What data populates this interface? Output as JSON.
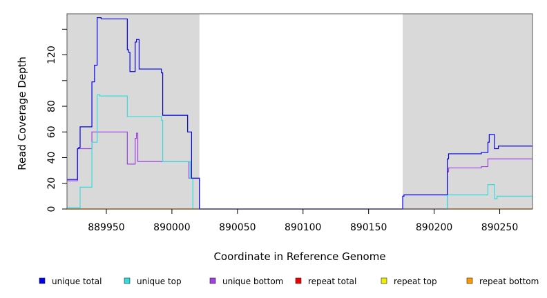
{
  "chart_data": {
    "type": "line",
    "title": "",
    "xlabel": "Coordinate in Reference Genome",
    "ylabel": "Read Coverage Depth",
    "xlim": [
      889920,
      890275
    ],
    "ylim": [
      0,
      152
    ],
    "x_ticks": [
      {
        "value": 889950,
        "label": "889950"
      },
      {
        "value": 890000,
        "label": "890000"
      },
      {
        "value": 890050,
        "label": "890050"
      },
      {
        "value": 890100,
        "label": "890100"
      },
      {
        "value": 890150,
        "label": "890150"
      },
      {
        "value": 890200,
        "label": "890200"
      },
      {
        "value": 890250,
        "label": "890250"
      }
    ],
    "y_ticks": [
      {
        "value": 0,
        "label": "0"
      },
      {
        "value": 20,
        "label": "20"
      },
      {
        "value": 40,
        "label": "40"
      },
      {
        "value": 60,
        "label": "60"
      },
      {
        "value": 80,
        "label": "80"
      },
      {
        "value": 100,
        "label": ""
      },
      {
        "value": 120,
        "label": "120"
      },
      {
        "value": 140,
        "label": ""
      }
    ],
    "shaded_regions": [
      {
        "x_start": 889920,
        "x_end": 890021,
        "color": "#d9d9d9"
      },
      {
        "x_start": 890176,
        "x_end": 890275,
        "color": "#d9d9d9"
      }
    ],
    "legend_position": "bottom",
    "series": [
      {
        "name": "unique total",
        "color": "#0000ee",
        "points": [
          [
            889920,
            23
          ],
          [
            889928,
            23
          ],
          [
            889928,
            47
          ],
          [
            889929,
            47
          ],
          [
            889929,
            48
          ],
          [
            889930,
            48
          ],
          [
            889930,
            64
          ],
          [
            889939,
            64
          ],
          [
            889939,
            99
          ],
          [
            889941,
            99
          ],
          [
            889941,
            112
          ],
          [
            889943,
            112
          ],
          [
            889943,
            149
          ],
          [
            889946,
            149
          ],
          [
            889946,
            148
          ],
          [
            889966,
            148
          ],
          [
            889966,
            124
          ],
          [
            889967,
            124
          ],
          [
            889967,
            122
          ],
          [
            889968,
            122
          ],
          [
            889968,
            107
          ],
          [
            889972,
            107
          ],
          [
            889972,
            130
          ],
          [
            889973,
            130
          ],
          [
            889973,
            132
          ],
          [
            889975,
            132
          ],
          [
            889975,
            109
          ],
          [
            889992,
            109
          ],
          [
            889992,
            106
          ],
          [
            889993,
            106
          ],
          [
            889993,
            73
          ],
          [
            890012,
            73
          ],
          [
            890012,
            60
          ],
          [
            890015,
            60
          ],
          [
            890015,
            24
          ],
          [
            890021,
            24
          ],
          [
            890021,
            0
          ],
          [
            890176,
            0
          ],
          [
            890176,
            10
          ],
          [
            890177,
            10
          ],
          [
            890177,
            11
          ],
          [
            890210,
            11
          ],
          [
            890210,
            39
          ],
          [
            890211,
            39
          ],
          [
            890211,
            43
          ],
          [
            890236,
            43
          ],
          [
            890236,
            44
          ],
          [
            890241,
            44
          ],
          [
            890241,
            52
          ],
          [
            890242,
            52
          ],
          [
            890242,
            58
          ],
          [
            890246,
            58
          ],
          [
            890246,
            47
          ],
          [
            890249,
            47
          ],
          [
            890249,
            49
          ],
          [
            890275,
            49
          ]
        ]
      },
      {
        "name": "unique top",
        "color": "#33dddd",
        "points": [
          [
            889920,
            1
          ],
          [
            889930,
            1
          ],
          [
            889930,
            17
          ],
          [
            889939,
            17
          ],
          [
            889939,
            52
          ],
          [
            889943,
            52
          ],
          [
            889943,
            89
          ],
          [
            889945,
            89
          ],
          [
            889945,
            88
          ],
          [
            889966,
            88
          ],
          [
            889966,
            72
          ],
          [
            889992,
            72
          ],
          [
            889992,
            69
          ],
          [
            889993,
            69
          ],
          [
            889993,
            37
          ],
          [
            890014,
            37
          ],
          [
            890014,
            24
          ],
          [
            890016,
            24
          ],
          [
            890016,
            0
          ],
          [
            890210,
            0
          ],
          [
            890210,
            11
          ],
          [
            890241,
            11
          ],
          [
            890241,
            19
          ],
          [
            890246,
            19
          ],
          [
            890246,
            8
          ],
          [
            890248,
            8
          ],
          [
            890248,
            10
          ],
          [
            890275,
            10
          ]
        ]
      },
      {
        "name": "unique bottom",
        "color": "#a040e0",
        "points": [
          [
            889920,
            22
          ],
          [
            889928,
            22
          ],
          [
            889928,
            47
          ],
          [
            889939,
            47
          ],
          [
            889939,
            60
          ],
          [
            889966,
            60
          ],
          [
            889966,
            35
          ],
          [
            889972,
            35
          ],
          [
            889972,
            55
          ],
          [
            889973,
            55
          ],
          [
            889973,
            59
          ],
          [
            889974,
            59
          ],
          [
            889974,
            37
          ],
          [
            890013,
            37
          ],
          [
            890013,
            24
          ],
          [
            890021,
            24
          ],
          [
            890021,
            0
          ],
          [
            890210,
            0
          ],
          [
            890210,
            29
          ],
          [
            890211,
            29
          ],
          [
            890211,
            32
          ],
          [
            890236,
            32
          ],
          [
            890236,
            33
          ],
          [
            890241,
            33
          ],
          [
            890241,
            39
          ],
          [
            890275,
            39
          ]
        ]
      },
      {
        "name": "repeat total",
        "color": "#ee0000",
        "points": [
          [
            889920,
            0
          ],
          [
            890275,
            0
          ]
        ]
      },
      {
        "name": "repeat top",
        "color": "#eeee00",
        "points": [
          [
            889920,
            0
          ],
          [
            890275,
            0
          ]
        ]
      },
      {
        "name": "repeat bottom",
        "color": "#ff9900",
        "points": [
          [
            889920,
            0
          ],
          [
            890275,
            0
          ]
        ]
      }
    ]
  }
}
